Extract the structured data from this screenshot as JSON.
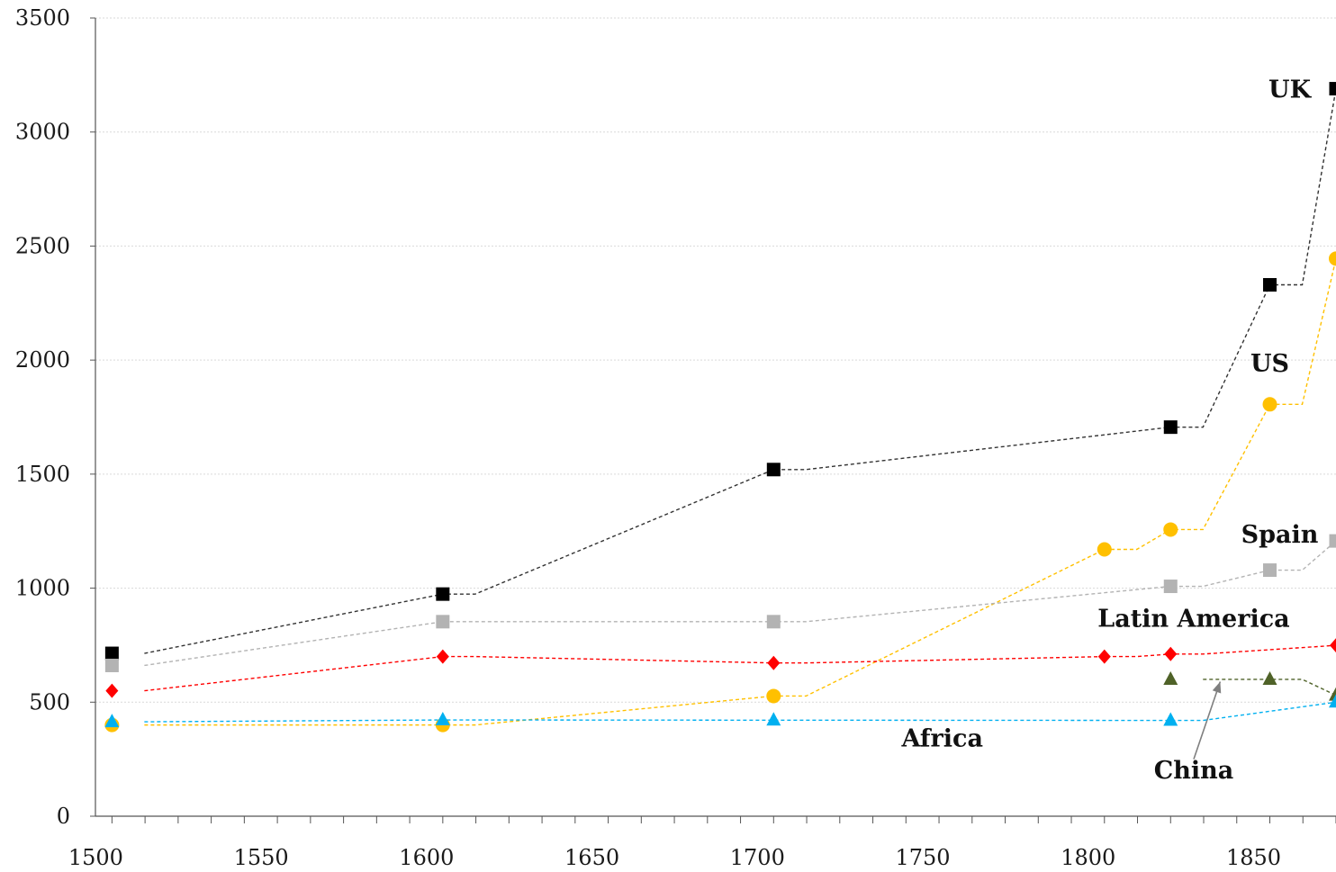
{
  "chart_data": {
    "type": "line",
    "title": "",
    "xlabel": "",
    "ylabel": "",
    "xlim": [
      1495,
      1870
    ],
    "ylim": [
      0,
      3500
    ],
    "x_ticks": [
      1500,
      1550,
      1600,
      1650,
      1700,
      1750,
      1800,
      1850
    ],
    "y_ticks": [
      0,
      500,
      1000,
      1500,
      2000,
      2500,
      3000,
      3500
    ],
    "grid": "horizontal",
    "legend": "none",
    "series": [
      {
        "name": "UK",
        "color": "#000000",
        "marker": "square",
        "points": [
          [
            1500,
            714
          ],
          [
            1600,
            974
          ],
          [
            1700,
            1520
          ],
          [
            1820,
            1706
          ],
          [
            1850,
            2330
          ],
          [
            1870,
            3190
          ]
        ],
        "label_pos": [
          1856,
          3150
        ]
      },
      {
        "name": "US",
        "color": "#ffc000",
        "marker": "circle",
        "points": [
          [
            1500,
            400
          ],
          [
            1600,
            400
          ],
          [
            1700,
            527
          ],
          [
            1800,
            1170
          ],
          [
            1820,
            1257
          ],
          [
            1850,
            1806
          ],
          [
            1870,
            2445
          ]
        ],
        "label_pos": [
          1850,
          1950
        ]
      },
      {
        "name": "Spain",
        "color": "#b3b3b3",
        "marker": "square",
        "points": [
          [
            1500,
            661
          ],
          [
            1600,
            853
          ],
          [
            1700,
            853
          ],
          [
            1820,
            1008
          ],
          [
            1850,
            1079
          ],
          [
            1870,
            1207
          ]
        ],
        "label_pos": [
          1853,
          1200
        ]
      },
      {
        "name": "Latin America",
        "color": "#ff0000",
        "marker": "diamond",
        "points": [
          [
            1500,
            550
          ],
          [
            1600,
            700
          ],
          [
            1700,
            672
          ],
          [
            1800,
            700
          ],
          [
            1820,
            711
          ],
          [
            1870,
            749
          ]
        ],
        "label_pos": [
          1827,
          830
        ]
      },
      {
        "name": "China",
        "color": "#4f6228",
        "marker": "triangle",
        "points": [
          [
            1820,
            600
          ],
          [
            1850,
            600
          ],
          [
            1870,
            530
          ]
        ],
        "label_pos": [
          1827,
          165
        ],
        "arrow": [
          [
            1827,
            250
          ],
          [
            1835,
            590
          ]
        ]
      },
      {
        "name": "Africa",
        "color": "#00b0f0",
        "marker": "triangle",
        "points": [
          [
            1500,
            414
          ],
          [
            1600,
            422
          ],
          [
            1700,
            421
          ],
          [
            1820,
            420
          ],
          [
            1870,
            500
          ]
        ],
        "label_pos": [
          1751,
          305
        ]
      }
    ]
  }
}
